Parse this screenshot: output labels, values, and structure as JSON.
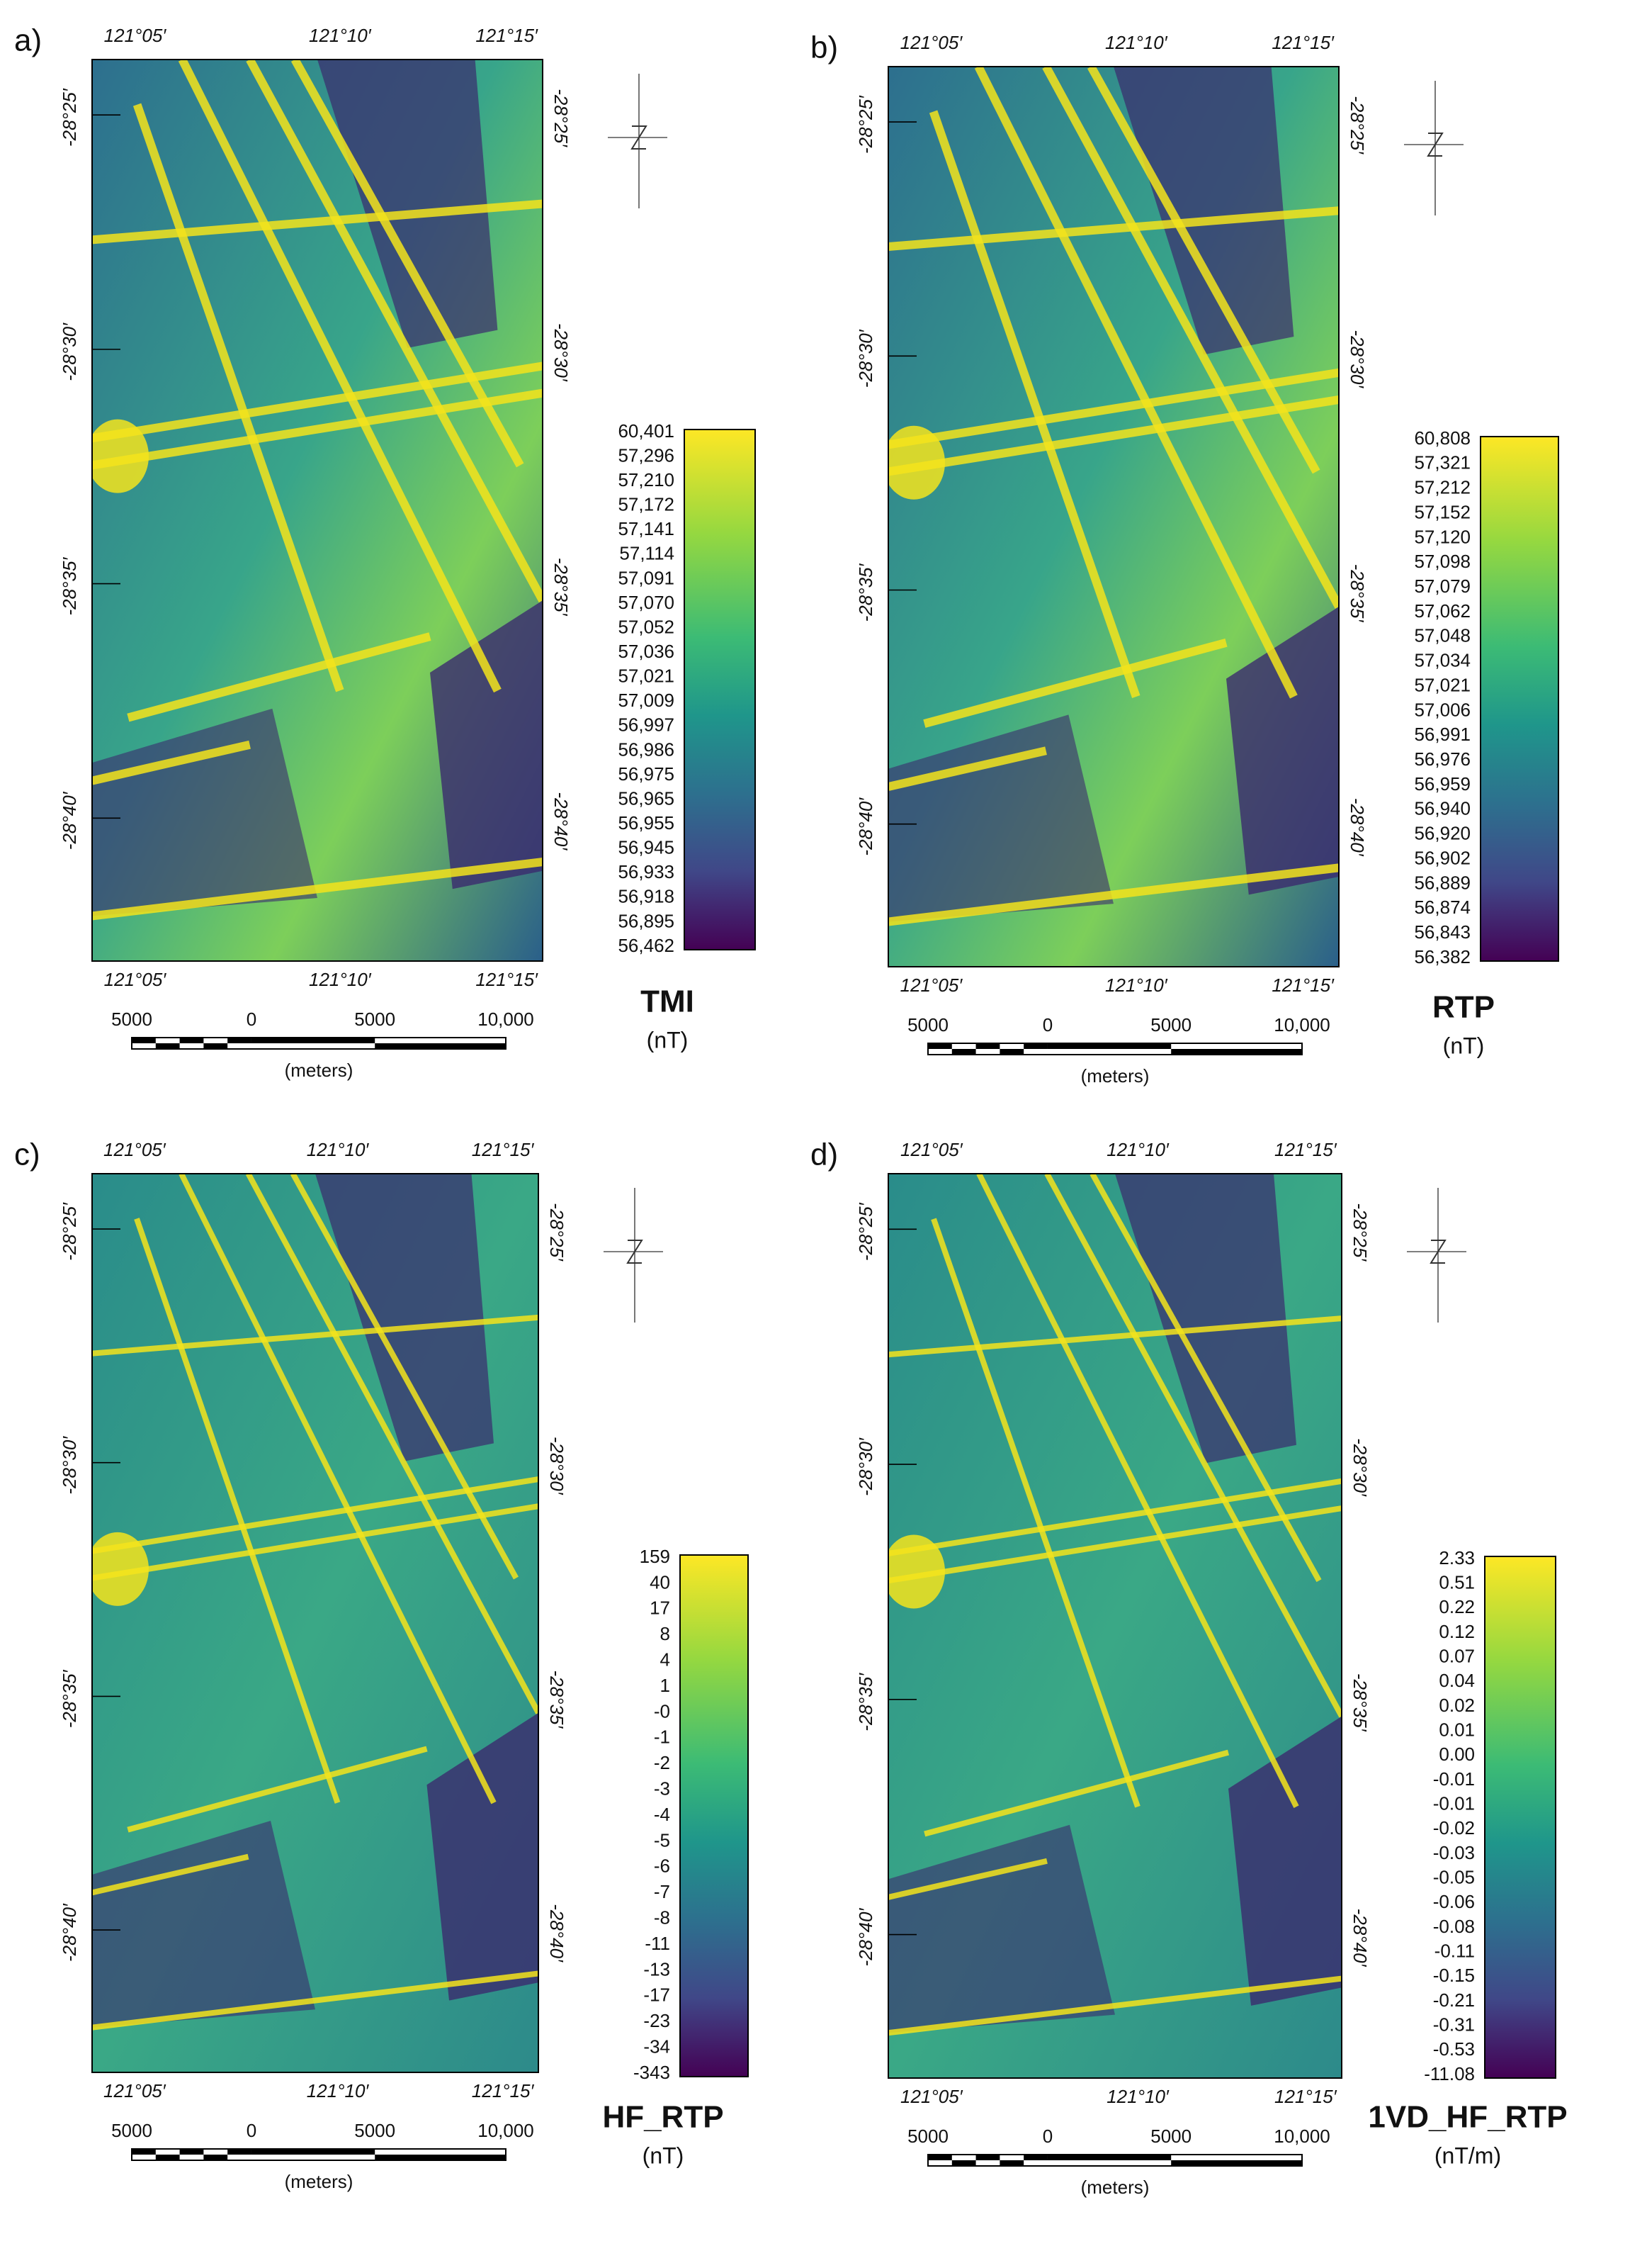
{
  "panels": [
    {
      "label": "a)",
      "top_labels": [
        "121°05′",
        "121°10′",
        "121°15′"
      ],
      "bottom_labels": [
        "121°05′",
        "121°10′",
        "121°15′"
      ],
      "left_labels": [
        "-28°25′",
        "-28°30′",
        "-28°35′",
        "-28°40′"
      ],
      "right_labels": [
        "-28°25′",
        "-28°30′",
        "-28°35′",
        "-28°40′"
      ],
      "colorbar_labels": [
        "60,401",
        "57,296",
        "57,210",
        "57,172",
        "57,141",
        "57,114",
        "57,091",
        "57,070",
        "57,052",
        "57,036",
        "57,021",
        "57,009",
        "56,997",
        "56,986",
        "56,975",
        "56,965",
        "56,955",
        "56,945",
        "56,933",
        "56,918",
        "56,895",
        "56,462"
      ],
      "title": "TMI",
      "unit": "(nT)",
      "scale_labels": [
        "5000",
        "0",
        "5000",
        "10,000"
      ],
      "scale_unit": "(meters)"
    },
    {
      "label": "b)",
      "top_labels": [
        "121°05′",
        "121°10′",
        "121°15′"
      ],
      "bottom_labels": [
        "121°05′",
        "121°10′",
        "121°15′"
      ],
      "left_labels": [
        "-28°25′",
        "-28°30′",
        "-28°35′",
        "-28°40′"
      ],
      "right_labels": [
        "-28°25′",
        "-28°30′",
        "-28°35′",
        "-28°40′"
      ],
      "colorbar_labels": [
        "60,808",
        "57,321",
        "57,212",
        "57,152",
        "57,120",
        "57,098",
        "57,079",
        "57,062",
        "57,048",
        "57,034",
        "57,021",
        "57,006",
        "56,991",
        "56,976",
        "56,959",
        "56,940",
        "56,920",
        "56,902",
        "56,889",
        "56,874",
        "56,843",
        "56,382"
      ],
      "title": "RTP",
      "unit": "(nT)",
      "scale_labels": [
        "5000",
        "0",
        "5000",
        "10,000"
      ],
      "scale_unit": "(meters)"
    },
    {
      "label": "c)",
      "top_labels": [
        "121°05′",
        "121°10′",
        "121°15′"
      ],
      "bottom_labels": [
        "121°05′",
        "121°10′",
        "121°15′"
      ],
      "left_labels": [
        "-28°25′",
        "-28°30′",
        "-28°35′",
        "-28°40′"
      ],
      "right_labels": [
        "-28°25′",
        "-28°30′",
        "-28°35′",
        "-28°40′"
      ],
      "colorbar_labels": [
        "159",
        "40",
        "17",
        "8",
        "4",
        "1",
        "-0",
        "-1",
        "-2",
        "-3",
        "-4",
        "-5",
        "-6",
        "-7",
        "-8",
        "-11",
        "-13",
        "-17",
        "-23",
        "-34",
        "-343"
      ],
      "title": "HF_RTP",
      "unit": "(nT)",
      "scale_labels": [
        "5000",
        "0",
        "5000",
        "10,000"
      ],
      "scale_unit": "(meters)"
    },
    {
      "label": "d)",
      "top_labels": [
        "121°05′",
        "121°10′",
        "121°15′"
      ],
      "bottom_labels": [
        "121°05′",
        "121°10′",
        "121°15′"
      ],
      "left_labels": [
        "-28°25′",
        "-28°30′",
        "-28°35′",
        "-28°40′"
      ],
      "right_labels": [
        "-28°25′",
        "-28°30′",
        "-28°35′",
        "-28°40′"
      ],
      "colorbar_labels": [
        "2.33",
        "0.51",
        "0.22",
        "0.12",
        "0.07",
        "0.04",
        "0.02",
        "0.01",
        "0.00",
        "-0.01",
        "-0.01",
        "-0.02",
        "-0.03",
        "-0.05",
        "-0.06",
        "-0.08",
        "-0.11",
        "-0.15",
        "-0.21",
        "-0.31",
        "-0.53",
        "-11.08"
      ],
      "title": "1VD_HF_RTP",
      "unit": "(nT/m)",
      "scale_labels": [
        "5000",
        "0",
        "5000",
        "10,000"
      ],
      "scale_unit": "(meters)"
    }
  ]
}
